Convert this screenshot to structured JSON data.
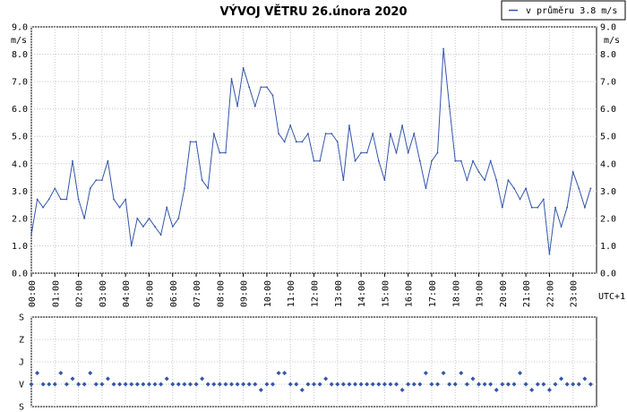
{
  "chart_data": [
    {
      "type": "line",
      "title": "VÝVOJ VĚTRU  26.února 2020",
      "ylabel": "m/s",
      "ylabel_right": "m/s",
      "xlabel": "UTC+1",
      "ylim": [
        0,
        9
      ],
      "yticks": [
        "0.0",
        "1.0",
        "2.0",
        "3.0",
        "4.0",
        "5.0",
        "6.0",
        "7.0",
        "8.0",
        "9.0"
      ],
      "xticks": [
        "00:00",
        "01:00",
        "02:00",
        "03:00",
        "04:00",
        "05:00",
        "06:00",
        "07:00",
        "08:00",
        "09:00",
        "10:00",
        "11:00",
        "12:00",
        "13:00",
        "14:00",
        "15:00",
        "16:00",
        "17:00",
        "18:00",
        "19:00",
        "20:00",
        "21:00",
        "22:00",
        "23:00"
      ],
      "xlim": [
        0,
        24
      ],
      "grid": true,
      "legend": "top-right",
      "series": [
        {
          "name": "v průměru 3.8 m/s",
          "color": "#3355aa",
          "values": [
            1.4,
            2.7,
            2.4,
            2.7,
            3.1,
            2.7,
            2.7,
            4.1,
            2.7,
            2.0,
            3.1,
            3.4,
            3.4,
            4.1,
            2.7,
            2.4,
            2.7,
            1.0,
            2.0,
            1.7,
            2.0,
            1.7,
            1.4,
            2.4,
            1.7,
            2.0,
            3.1,
            4.8,
            4.8,
            3.4,
            3.1,
            5.1,
            4.4,
            4.4,
            7.1,
            6.1,
            7.5,
            6.8,
            6.1,
            6.8,
            6.8,
            6.5,
            5.1,
            4.8,
            5.4,
            4.8,
            4.8,
            5.1,
            4.1,
            4.1,
            5.1,
            5.1,
            4.8,
            3.4,
            5.4,
            4.1,
            4.4,
            4.4,
            5.1,
            4.1,
            3.4,
            5.1,
            4.4,
            5.4,
            4.4,
            5.1,
            4.1,
            3.1,
            4.1,
            4.4,
            8.2,
            6.1,
            4.1,
            4.1,
            3.4,
            4.1,
            3.7,
            3.4,
            4.1,
            3.4,
            2.4,
            3.4,
            3.1,
            2.7,
            3.1,
            2.4,
            2.4,
            2.7,
            0.7,
            2.4,
            1.7,
            2.4,
            3.7,
            3.1,
            2.4,
            3.1
          ]
        }
      ]
    },
    {
      "type": "scatter",
      "title": "",
      "ylabel": "",
      "yticks": [
        "S",
        "Z",
        "J",
        "V",
        "S"
      ],
      "ylim": [
        0,
        360
      ],
      "xlim": [
        0,
        24
      ],
      "grid": true,
      "marker_color": "#3355aa",
      "values": [
        270,
        225,
        270,
        270,
        270,
        225,
        270,
        248,
        270,
        270,
        225,
        270,
        270,
        248,
        270,
        270,
        270,
        270,
        270,
        270,
        270,
        270,
        270,
        248,
        270,
        270,
        270,
        270,
        270,
        248,
        270,
        270,
        270,
        270,
        270,
        270,
        270,
        270,
        270,
        293,
        270,
        270,
        225,
        225,
        270,
        270,
        293,
        270,
        270,
        270,
        248,
        270,
        270,
        270,
        270,
        270,
        270,
        270,
        270,
        270,
        270,
        270,
        270,
        293,
        270,
        270,
        270,
        225,
        270,
        270,
        225,
        270,
        270,
        225,
        270,
        248,
        270,
        270,
        270,
        293,
        270,
        270,
        270,
        225,
        270,
        293,
        270,
        270,
        293,
        270,
        248,
        270,
        270,
        270,
        248,
        270
      ]
    }
  ]
}
